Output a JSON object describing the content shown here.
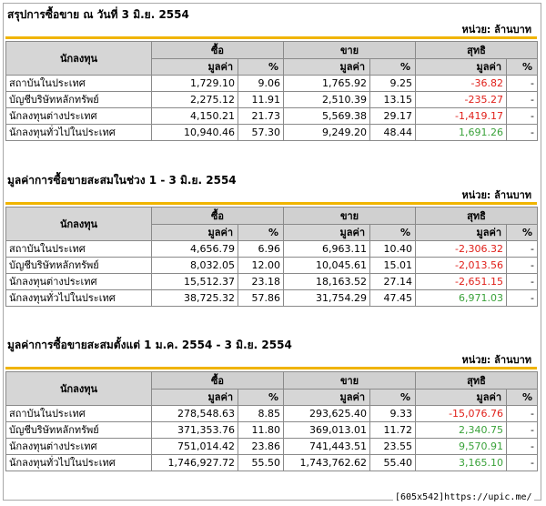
{
  "unit_label": "หน่วย: ล้านบาท",
  "headers": {
    "investor": "นักลงทุน",
    "buy": "ซื้อ",
    "sell": "ขาย",
    "net": "สุทธิ",
    "value": "มูลค่า",
    "pct": "%"
  },
  "sections": [
    {
      "title": "สรุปการซื้อขาย ณ วันที่ 3 มิ.ย. 2554",
      "rows": [
        {
          "name": "สถาบันในประเทศ",
          "buy_val": "1,729.10",
          "buy_pct": "9.06",
          "sell_val": "1,765.92",
          "sell_pct": "9.25",
          "net_val": "-36.82",
          "net_pct": "-",
          "net_sign": "neg"
        },
        {
          "name": "บัญชีบริษัทหลักทรัพย์",
          "buy_val": "2,275.12",
          "buy_pct": "11.91",
          "sell_val": "2,510.39",
          "sell_pct": "13.15",
          "net_val": "-235.27",
          "net_pct": "-",
          "net_sign": "neg"
        },
        {
          "name": "นักลงทุนต่างประเทศ",
          "buy_val": "4,150.21",
          "buy_pct": "21.73",
          "sell_val": "5,569.38",
          "sell_pct": "29.17",
          "net_val": "-1,419.17",
          "net_pct": "-",
          "net_sign": "neg"
        },
        {
          "name": "นักลงทุนทั่วไปในประเทศ",
          "buy_val": "10,940.46",
          "buy_pct": "57.30",
          "sell_val": "9,249.20",
          "sell_pct": "48.44",
          "net_val": "1,691.26",
          "net_pct": "-",
          "net_sign": "pos"
        }
      ]
    },
    {
      "title": "มูลค่าการซื้อขายสะสมในช่วง 1 - 3 มิ.ย. 2554",
      "rows": [
        {
          "name": "สถาบันในประเทศ",
          "buy_val": "4,656.79",
          "buy_pct": "6.96",
          "sell_val": "6,963.11",
          "sell_pct": "10.40",
          "net_val": "-2,306.32",
          "net_pct": "-",
          "net_sign": "neg"
        },
        {
          "name": "บัญชีบริษัทหลักทรัพย์",
          "buy_val": "8,032.05",
          "buy_pct": "12.00",
          "sell_val": "10,045.61",
          "sell_pct": "15.01",
          "net_val": "-2,013.56",
          "net_pct": "-",
          "net_sign": "neg"
        },
        {
          "name": "นักลงทุนต่างประเทศ",
          "buy_val": "15,512.37",
          "buy_pct": "23.18",
          "sell_val": "18,163.52",
          "sell_pct": "27.14",
          "net_val": "-2,651.15",
          "net_pct": "-",
          "net_sign": "neg"
        },
        {
          "name": "นักลงทุนทั่วไปในประเทศ",
          "buy_val": "38,725.32",
          "buy_pct": "57.86",
          "sell_val": "31,754.29",
          "sell_pct": "47.45",
          "net_val": "6,971.03",
          "net_pct": "-",
          "net_sign": "pos"
        }
      ]
    },
    {
      "title": "มูลค่าการซื้อขายสะสมตั้งแต่ 1 ม.ค. 2554 - 3 มิ.ย. 2554",
      "rows": [
        {
          "name": "สถาบันในประเทศ",
          "buy_val": "278,548.63",
          "buy_pct": "8.85",
          "sell_val": "293,625.40",
          "sell_pct": "9.33",
          "net_val": "-15,076.76",
          "net_pct": "-",
          "net_sign": "neg"
        },
        {
          "name": "บัญชีบริษัทหลักทรัพย์",
          "buy_val": "371,353.76",
          "buy_pct": "11.80",
          "sell_val": "369,013.01",
          "sell_pct": "11.72",
          "net_val": "2,340.75",
          "net_pct": "-",
          "net_sign": "pos"
        },
        {
          "name": "นักลงทุนต่างประเทศ",
          "buy_val": "751,014.42",
          "buy_pct": "23.86",
          "sell_val": "741,443.51",
          "sell_pct": "23.55",
          "net_val": "9,570.91",
          "net_pct": "-",
          "net_sign": "pos"
        },
        {
          "name": "นักลงทุนทั่วไปในประเทศ",
          "buy_val": "1,746,927.72",
          "buy_pct": "55.50",
          "sell_val": "1,743,762.62",
          "sell_pct": "55.40",
          "net_val": "3,165.10",
          "net_pct": "-",
          "net_sign": "pos"
        }
      ]
    }
  ],
  "watermark": "[605x542]https://upic.me/"
}
